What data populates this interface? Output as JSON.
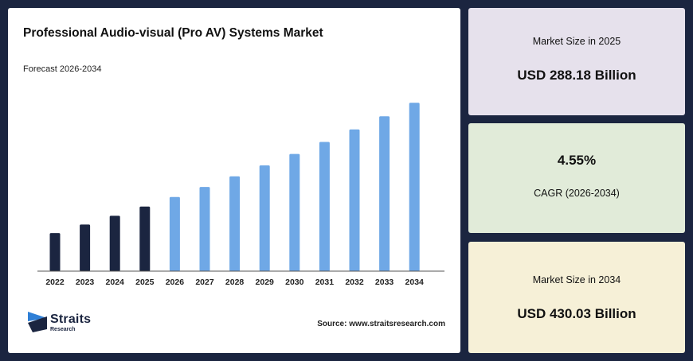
{
  "chart": {
    "title": "Professional Audio-visual (Pro AV) Systems Market",
    "subtitle": "Forecast 2026-2034",
    "source": "Source: www.straitsresearch.com"
  },
  "logo": {
    "name": "Straits",
    "sub": "Research"
  },
  "cards": {
    "market_2025": {
      "label": "Market Size in 2025",
      "value": "USD 288.18 Billion"
    },
    "cagr": {
      "value": "4.55%",
      "label": "CAGR (2026-2034)"
    },
    "market_2034": {
      "label": "Market Size in 2034",
      "value": "USD 430.03 Billion"
    }
  },
  "colors": {
    "historical": "#1b2540",
    "forecast": "#6fa8e6",
    "card_2025": "#e6e1ec",
    "card_cagr": "#e1ebd9",
    "card_2034": "#f6f0d7"
  },
  "chart_data": {
    "type": "bar",
    "categories": [
      "2022",
      "2023",
      "2024",
      "2025",
      "2026",
      "2027",
      "2028",
      "2029",
      "2030",
      "2031",
      "2032",
      "2033",
      "2034"
    ],
    "values": [
      252.0,
      263.6,
      275.6,
      288.18,
      301.3,
      315.0,
      329.4,
      344.4,
      360.1,
      376.5,
      393.6,
      411.5,
      430.03
    ],
    "historical_count": 4,
    "title": "Professional Audio-visual (Pro AV) Systems Market",
    "subtitle": "Forecast 2026-2034",
    "xlabel": "",
    "ylabel": "",
    "ylim": [
      200,
      440
    ],
    "grid": false,
    "legend": "none"
  }
}
